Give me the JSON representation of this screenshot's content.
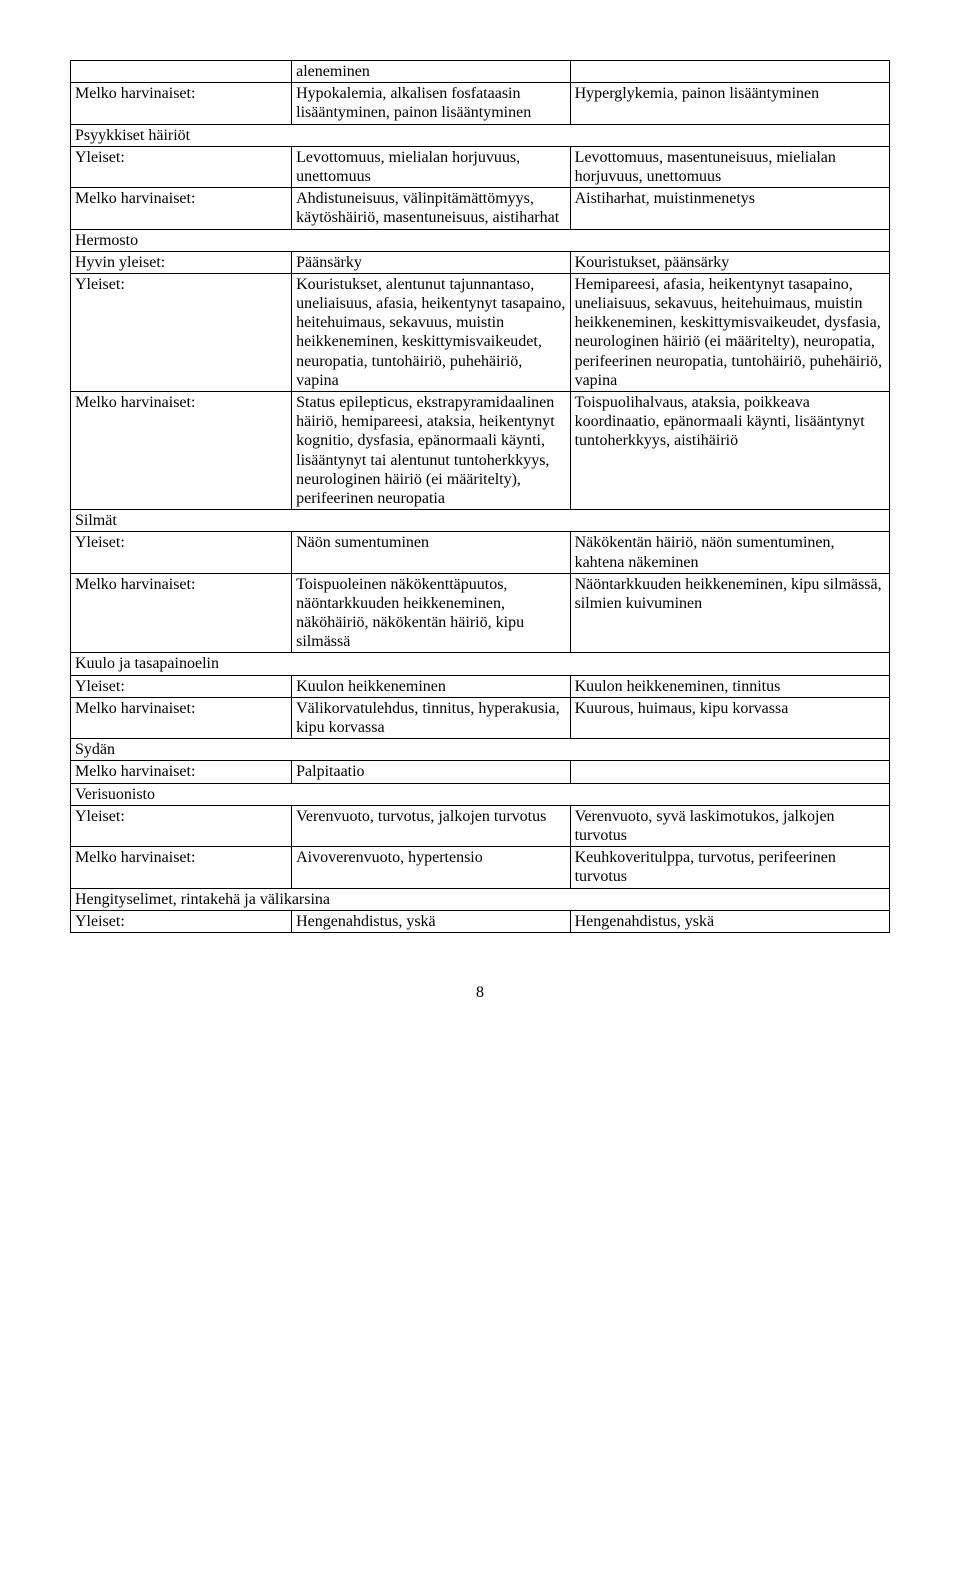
{
  "colors": {
    "border": "#000000",
    "text": "#000000",
    "background": "#ffffff"
  },
  "rows": [
    {
      "c1": "",
      "c2": "aleneminen",
      "c3": ""
    },
    {
      "c1": "Melko harvinaiset:",
      "c2": "Hypokalemia, alkalisen fosfataasin lisääntyminen, painon lisääntyminen",
      "c3": "Hyperglykemia, painon lisääntyminen"
    },
    {
      "section": "Psyykkiset häiriöt"
    },
    {
      "c1": "Yleiset:",
      "c2": "Levottomuus, mielialan horjuvuus, unettomuus",
      "c3": "Levottomuus, masentuneisuus, mielialan horjuvuus, unettomuus"
    },
    {
      "c1": "Melko harvinaiset:",
      "c2": "Ahdistuneisuus, välinpitämättömyys, käytöshäiriö, masentuneisuus, aistiharhat",
      "c3": "Aistiharhat, muistinmenetys"
    },
    {
      "section": "Hermosto"
    },
    {
      "c1": "Hyvin yleiset:",
      "c2": "Päänsärky",
      "c3": "Kouristukset, päänsärky"
    },
    {
      "c1": "Yleiset:",
      "c2": "Kouristukset, alentunut tajunnantaso, uneliaisuus, afasia, heikentynyt tasapaino, heitehuimaus, sekavuus, muistin heikkeneminen, keskittymisvaikeudet, neuropatia, tuntohäiriö, puhehäiriö, vapina",
      "c3": "Hemipareesi, afasia, heikentynyt tasapaino, uneliaisuus, sekavuus, heitehuimaus, muistin heikkeneminen, keskittymisvaikeudet, dysfasia, neurologinen häiriö (ei määritelty), neuropatia, perifeerinen neuropatia, tuntohäiriö, puhehäiriö, vapina"
    },
    {
      "c1": "Melko harvinaiset:",
      "c2": "Status epilepticus, ekstrapyramidaalinen häiriö, hemipareesi, ataksia, heikentynyt kognitio, dysfasia, epänormaali käynti, lisääntynyt tai alentunut tuntoherkkyys, neurologinen häiriö (ei määritelty), perifeerinen neuropatia",
      "c3": "Toispuolihalvaus, ataksia, poikkeava koordinaatio, epänormaali käynti, lisääntynyt tuntoherkkyys, aistihäiriö"
    },
    {
      "section": "Silmät"
    },
    {
      "c1": "Yleiset:",
      "c2": "Näön sumentuminen",
      "c3": "Näkökentän häiriö, näön sumentuminen, kahtena näkeminen"
    },
    {
      "c1": "Melko harvinaiset:",
      "c2": "Toispuoleinen näkökenttäpuutos, näöntarkkuuden heikkeneminen, näköhäiriö, näkökentän häiriö, kipu silmässä",
      "c3": "Näöntarkkuuden heikkeneminen, kipu silmässä, silmien kuivuminen"
    },
    {
      "section": "Kuulo ja tasapainoelin"
    },
    {
      "c1": "Yleiset:",
      "c2": "Kuulon heikkeneminen",
      "c3": "Kuulon heikkeneminen, tinnitus"
    },
    {
      "c1": "Melko harvinaiset:",
      "c2": "Välikorvatulehdus, tinnitus, hyperakusia, kipu korvassa",
      "c3": "Kuurous, huimaus, kipu korvassa"
    },
    {
      "section": "Sydän"
    },
    {
      "c1": "Melko harvinaiset:",
      "c2": "Palpitaatio",
      "c3": ""
    },
    {
      "section": "Verisuonisto"
    },
    {
      "c1": "Yleiset:",
      "c2": "Verenvuoto, turvotus, jalkojen turvotus",
      "c3": "Verenvuoto, syvä laskimotukos, jalkojen turvotus"
    },
    {
      "c1": "Melko harvinaiset:",
      "c2": "Aivoverenvuoto, hypertensio",
      "c3": "Keuhkoveritulppa, turvotus, perifeerinen turvotus"
    },
    {
      "section": "Hengityselimet, rintakehä ja välikarsina"
    },
    {
      "c1": "Yleiset:",
      "c2": "Hengenahdistus, yskä",
      "c3": "Hengenahdistus, yskä"
    }
  ],
  "page_number": "8"
}
